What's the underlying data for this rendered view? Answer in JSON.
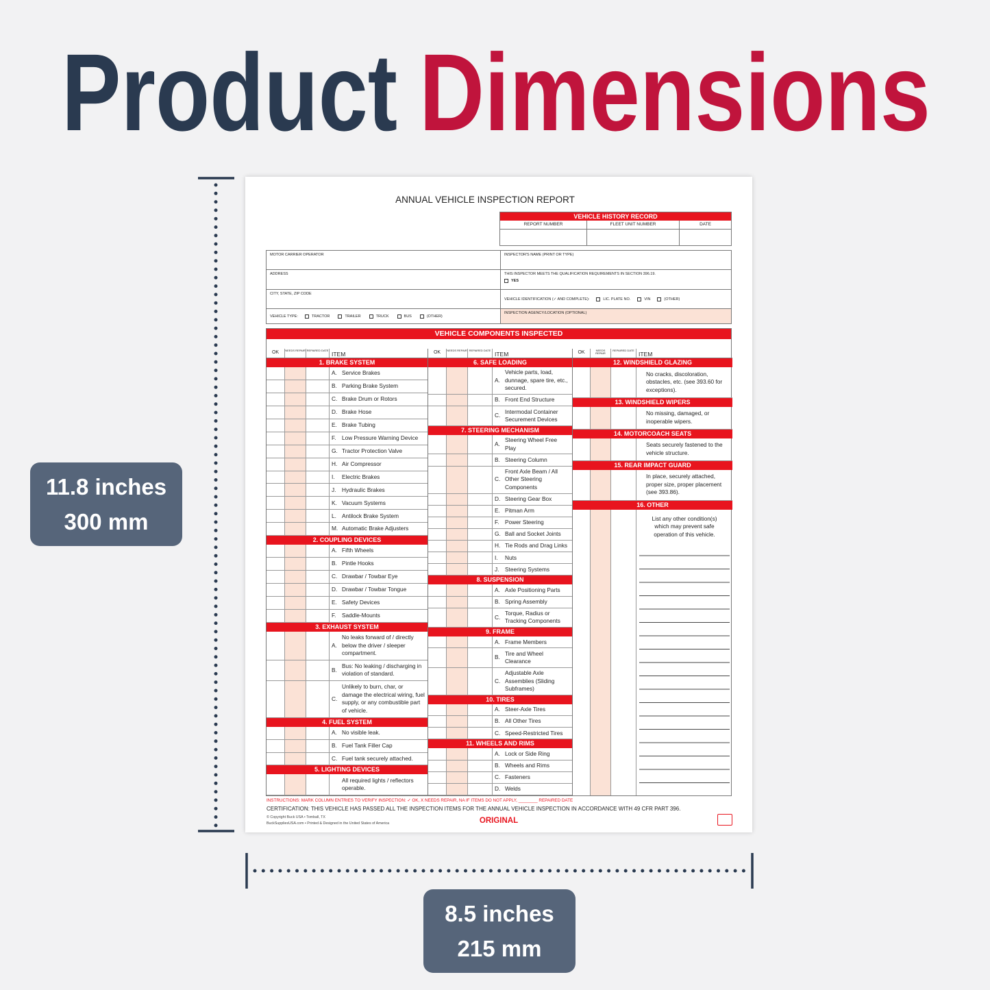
{
  "header": {
    "title_dark": "Product",
    "title_red": "Dimensions"
  },
  "dimensions": {
    "height": {
      "imperial": "11.8 inches",
      "metric": "300 mm"
    },
    "width": {
      "imperial": "8.5 inches",
      "metric": "215 mm"
    }
  },
  "form": {
    "title": "ANNUAL VEHICLE INSPECTION REPORT",
    "history": {
      "title": "VEHICLE HISTORY RECORD",
      "columns": [
        "REPORT NUMBER",
        "FLEET UNIT NUMBER",
        "DATE"
      ]
    },
    "fields_left": [
      "MOTOR CARRIER OPERATOR",
      "ADDRESS",
      "CITY, STATE, ZIP CODE"
    ],
    "vehicle_type": {
      "label": "VEHICLE TYPE:",
      "options": [
        "TRACTOR",
        "TRAILER",
        "TRUCK",
        "BUS",
        "(OTHER)"
      ]
    },
    "inspector_name": "INSPECTOR'S NAME (PRINT OR TYPE)",
    "qualification": {
      "label": "THIS INSPECTOR MEETS THE QUALIFICATION REQUIREMENTS IN SECTION 396.19.",
      "option": "YES"
    },
    "vehicle_id": {
      "label": "VEHICLE IDENTIFICATION (✓ AND COMPLETE):",
      "options": [
        "LIC. PLATE NO.",
        "VIN",
        "(OTHER)"
      ]
    },
    "agency": "INSPECTION AGENCY/LOCATION (OPTIONAL)",
    "components": {
      "title": "VEHICLE COMPONENTS INSPECTED",
      "column_headers": [
        "OK",
        "NEEDS REPAIR",
        "REPAIRED DATE",
        "ITEM"
      ],
      "columns": [
        [
          {
            "title": "1. BRAKE SYSTEM",
            "items": [
              {
                "letter": "A.",
                "text": "Service Brakes"
              },
              {
                "letter": "B.",
                "text": "Parking Brake System"
              },
              {
                "letter": "C.",
                "text": "Brake Drum or Rotors"
              },
              {
                "letter": "D.",
                "text": "Brake Hose"
              },
              {
                "letter": "E.",
                "text": "Brake Tubing"
              },
              {
                "letter": "F.",
                "text": "Low Pressure Warning Device"
              },
              {
                "letter": "G.",
                "text": "Tractor Protection Valve"
              },
              {
                "letter": "H.",
                "text": "Air Compressor"
              },
              {
                "letter": "I.",
                "text": "Electric Brakes"
              },
              {
                "letter": "J.",
                "text": "Hydraulic Brakes"
              },
              {
                "letter": "K.",
                "text": "Vacuum Systems"
              },
              {
                "letter": "L.",
                "text": "Antilock Brake System"
              },
              {
                "letter": "M.",
                "text": "Automatic Brake Adjusters"
              }
            ]
          },
          {
            "title": "2. COUPLING DEVICES",
            "items": [
              {
                "letter": "A.",
                "text": "Fifth Wheels"
              },
              {
                "letter": "B.",
                "text": "Pintle Hooks"
              },
              {
                "letter": "C.",
                "text": "Drawbar / Towbar Eye"
              },
              {
                "letter": "D.",
                "text": "Drawbar / Towbar Tongue"
              },
              {
                "letter": "E.",
                "text": "Safety Devices"
              },
              {
                "letter": "F.",
                "text": "Saddle-Mounts"
              }
            ]
          },
          {
            "title": "3. EXHAUST SYSTEM",
            "items": [
              {
                "letter": "A.",
                "text": "No leaks forward of / directly below the driver / sleeper compartment."
              },
              {
                "letter": "B.",
                "text": "Bus: No leaking / discharging in violation of standard."
              },
              {
                "letter": "C.",
                "text": "Unlikely to burn, char, or damage the electrical wiring, fuel supply, or any combustible part of vehicle."
              }
            ]
          },
          {
            "title": "4. FUEL SYSTEM",
            "items": [
              {
                "letter": "A.",
                "text": "No visible leak."
              },
              {
                "letter": "B.",
                "text": "Fuel Tank Filler Cap"
              },
              {
                "letter": "C.",
                "text": "Fuel tank securely attached."
              }
            ]
          },
          {
            "title": "5. LIGHTING DEVICES",
            "items": [
              {
                "text": "All required lights / reflectors operable."
              }
            ]
          }
        ],
        [
          {
            "title": "6. SAFE LOADING",
            "items": [
              {
                "letter": "A.",
                "text": "Vehicle parts, load, dunnage, spare tire, etc., secured."
              },
              {
                "letter": "B.",
                "text": "Front End Structure"
              },
              {
                "letter": "C.",
                "text": "Intermodal Container Securement Devices"
              }
            ]
          },
          {
            "title": "7. STEERING MECHANISM",
            "items": [
              {
                "letter": "A.",
                "text": "Steering Wheel Free Play"
              },
              {
                "letter": "B.",
                "text": "Steering Column"
              },
              {
                "letter": "C.",
                "text": "Front Axle Beam / All Other Steering Components"
              },
              {
                "letter": "D.",
                "text": "Steering Gear Box"
              },
              {
                "letter": "E.",
                "text": "Pitman Arm"
              },
              {
                "letter": "F.",
                "text": "Power Steering"
              },
              {
                "letter": "G.",
                "text": "Ball and Socket Joints"
              },
              {
                "letter": "H.",
                "text": "Tie Rods and Drag Links"
              },
              {
                "letter": "I.",
                "text": "Nuts"
              },
              {
                "letter": "J.",
                "text": "Steering Systems"
              }
            ]
          },
          {
            "title": "8. SUSPENSION",
            "items": [
              {
                "letter": "A.",
                "text": "Axle Positioning Parts"
              },
              {
                "letter": "B.",
                "text": "Spring Assembly"
              },
              {
                "letter": "C.",
                "text": "Torque, Radius or Tracking Components"
              }
            ]
          },
          {
            "title": "9. FRAME",
            "items": [
              {
                "letter": "A.",
                "text": "Frame Members"
              },
              {
                "letter": "B.",
                "text": "Tire and Wheel Clearance"
              },
              {
                "letter": "C.",
                "text": "Adjustable Axle Assemblies (Sliding Subframes)"
              }
            ]
          },
          {
            "title": "10. TIRES",
            "items": [
              {
                "letter": "A.",
                "text": "Steer-Axle Tires"
              },
              {
                "letter": "B.",
                "text": "All Other Tires"
              },
              {
                "letter": "C.",
                "text": "Speed-Restricted Tires"
              }
            ]
          },
          {
            "title": "11. WHEELS AND RIMS",
            "items": [
              {
                "letter": "A.",
                "text": "Lock or Side Ring"
              },
              {
                "letter": "B.",
                "text": "Wheels and Rims"
              },
              {
                "letter": "C.",
                "text": "Fasteners"
              },
              {
                "letter": "D.",
                "text": "Welds"
              }
            ]
          }
        ],
        [
          {
            "title": "12. WINDSHIELD GLAZING",
            "items": [
              {
                "text": "No cracks, discoloration, obstacles, etc. (see 393.60 for exceptions)."
              }
            ]
          },
          {
            "title": "13. WINDSHIELD WIPERS",
            "items": [
              {
                "text": "No missing, damaged, or inoperable wipers."
              }
            ]
          },
          {
            "title": "14. MOTORCOACH SEATS",
            "items": [
              {
                "text": "Seats securely fastened to the vehicle structure."
              }
            ]
          },
          {
            "title": "15. REAR IMPACT GUARD",
            "items": [
              {
                "text": "In place, securely attached, proper size, proper placement (see 393.86)."
              }
            ]
          },
          {
            "title": "16. OTHER",
            "items": [
              {
                "text": "List any other condition(s) which may prevent safe operation of this vehicle."
              }
            ]
          }
        ]
      ]
    },
    "instructions": "INSTRUCTIONS: MARK COLUMN ENTRIES TO VERIFY INSPECTION: ✓ OK, X NEEDS REPAIR, NA IF ITEMS DO NOT APPLY, ________ REPAIRED DATE",
    "certification": "CERTIFICATION: THIS VEHICLE HAS PASSED ALL THE INSPECTION ITEMS FOR THE ANNUAL VEHICLE INSPECTION IN ACCORDANCE WITH 49 CFR PART 396.",
    "copyright": [
      "© Copyright Buck USA • Tomball, TX",
      "BuckSuppliesUSA.com • Printed & Designed in the United States of America"
    ],
    "copy": "ORIGINAL"
  }
}
